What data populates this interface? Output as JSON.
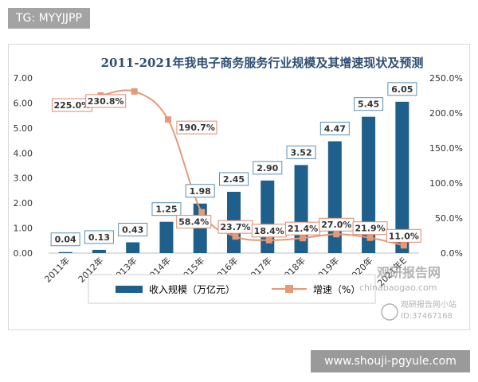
{
  "tag_label": "TG: MYYJJPP",
  "footer_url": "www.shouji-pgyule.com",
  "watermark": {
    "brand": "观研报告网",
    "site": "chinabaogao.com",
    "sub": "观研报告网小站",
    "id": "ID:37467168"
  },
  "colors": {
    "bar": "#1f5f8b",
    "line": "#e59a76",
    "label_border": "#5b8fb4",
    "line_label_border": "#e1866a",
    "title": "#2f4e74"
  },
  "chart_data": {
    "type": "bar",
    "title": "2011-2021年我电子商务服务行业规模及其增速现状及预测",
    "categories": [
      "2011年",
      "2012年",
      "2013年",
      "2014年",
      "2015年",
      "2016年",
      "2017年",
      "2018年",
      "2019年",
      "2020年",
      "2021年E"
    ],
    "series": [
      {
        "name": "收入规模（万亿元）",
        "type": "bar",
        "axis": "left",
        "values": [
          0.04,
          0.13,
          0.43,
          1.25,
          1.98,
          2.45,
          2.9,
          3.52,
          4.47,
          5.45,
          6.05
        ],
        "labels": [
          "0.04",
          "0.13",
          "0.43",
          "1.25",
          "1.98",
          "2.45",
          "2.90",
          "3.52",
          "4.47",
          "5.45",
          "6.05"
        ]
      },
      {
        "name": "增速（%）",
        "type": "line",
        "axis": "right",
        "values": [
          null,
          225.0,
          230.8,
          190.7,
          58.4,
          23.7,
          18.4,
          21.4,
          27.0,
          21.9,
          11.0
        ],
        "labels": [
          "",
          "225.0%",
          "230.8%",
          "190.7%",
          "58.4%",
          "23.7%",
          "18.4%",
          "21.4%",
          "27.0%",
          "21.9%",
          "11.0%"
        ]
      }
    ],
    "y_left": {
      "min": 0,
      "max": 7,
      "ticks": [
        "0.00",
        "1.00",
        "2.00",
        "3.00",
        "4.00",
        "5.00",
        "6.00",
        "7.00"
      ]
    },
    "y_right": {
      "min": 0,
      "max": 250,
      "ticks": [
        "0.0%",
        "50.0%",
        "100.0%",
        "150.0%",
        "200.0%",
        "250.0%"
      ]
    },
    "grid": false,
    "legend_position": "bottom"
  }
}
